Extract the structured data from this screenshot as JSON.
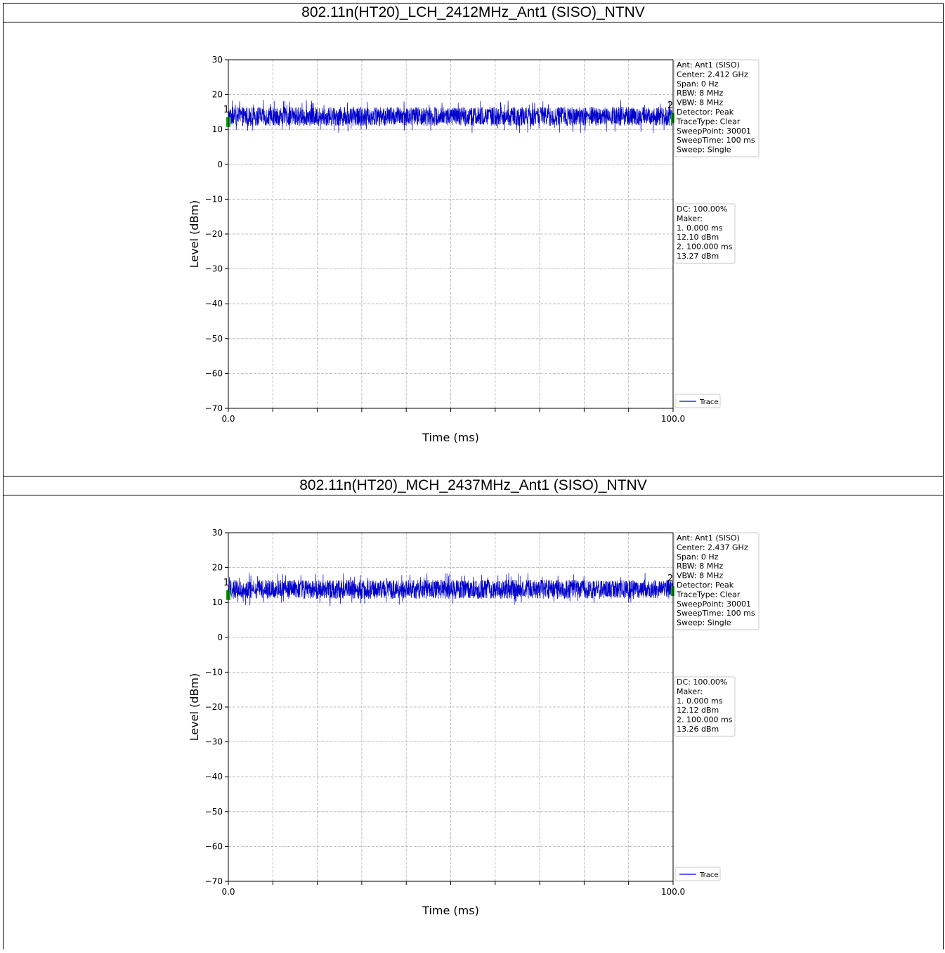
{
  "sections": [
    {
      "title": "802.11n(HT20)_LCH_2412MHz_Ant1 (SISO)_NTNV",
      "info_lines": [
        "Ant: Ant1 (SISO)",
        "Center: 2.412 GHz",
        "Span: 0 Hz",
        "RBW: 8 MHz",
        "VBW: 8 MHz",
        "Detector: Peak",
        "TraceType: Clear",
        "SweepPoint: 30001",
        "SweepTime: 100 ms",
        "Sweep: Single"
      ],
      "marker_lines": [
        "DC: 100.00%",
        "Maker:",
        "1. 0.000 ms",
        "    12.10 dBm",
        "2. 100.000 ms",
        "    13.27 dBm"
      ]
    },
    {
      "title": "802.11n(HT20)_MCH_2437MHz_Ant1 (SISO)_NTNV",
      "info_lines": [
        "Ant: Ant1 (SISO)",
        "Center: 2.437 GHz",
        "Span: 0 Hz",
        "RBW: 8 MHz",
        "VBW: 8 MHz",
        "Detector: Peak",
        "TraceType: Clear",
        "SweepPoint: 30001",
        "SweepTime: 100 ms",
        "Sweep: Single"
      ],
      "marker_lines": [
        "DC: 100.00%",
        "Maker:",
        "1. 0.000 ms",
        "    12.12 dBm",
        "2. 100.000 ms",
        "    13.26 dBm"
      ]
    }
  ],
  "chart_data": [
    {
      "type": "line",
      "xlabel": "Time (ms)",
      "ylabel": "Level (dBm)",
      "xlim": [
        0.0,
        100.0
      ],
      "ylim": [
        -70,
        30
      ],
      "x_tick_labels": [
        "0.0",
        "100.0"
      ],
      "y_ticks": [
        30,
        20,
        10,
        0,
        -10,
        -20,
        -30,
        -40,
        -50,
        -60,
        -70
      ],
      "y_tick_labels": [
        "30",
        "20",
        "10",
        "0",
        "−10",
        "−20",
        "−30",
        "−40",
        "−50",
        "−60",
        "−70"
      ],
      "grid": true,
      "legend_position": "bottom-right",
      "series": [
        {
          "name": "Trace",
          "color": "#0000cc",
          "approx_level_range_dbm": [
            10,
            17
          ],
          "approx_peak_dbm": 18.5
        }
      ],
      "markers": [
        {
          "label": "1",
          "x": 0.0,
          "y": 12.1,
          "color": "#00aa00"
        },
        {
          "label": "2",
          "x": 100.0,
          "y": 13.27,
          "color": "#00aa00"
        }
      ]
    },
    {
      "type": "line",
      "xlabel": "Time (ms)",
      "ylabel": "Level (dBm)",
      "xlim": [
        0.0,
        100.0
      ],
      "ylim": [
        -70,
        30
      ],
      "x_tick_labels": [
        "0.0",
        "100.0"
      ],
      "y_ticks": [
        30,
        20,
        10,
        0,
        -10,
        -20,
        -30,
        -40,
        -50,
        -60,
        -70
      ],
      "y_tick_labels": [
        "30",
        "20",
        "10",
        "0",
        "−10",
        "−20",
        "−30",
        "−40",
        "−50",
        "−60",
        "−70"
      ],
      "grid": true,
      "legend_position": "bottom-right",
      "series": [
        {
          "name": "Trace",
          "color": "#0000cc",
          "approx_level_range_dbm": [
            10,
            17
          ],
          "approx_peak_dbm": 18.5
        }
      ],
      "markers": [
        {
          "label": "1",
          "x": 0.0,
          "y": 12.12,
          "color": "#00aa00"
        },
        {
          "label": "2",
          "x": 100.0,
          "y": 13.26,
          "color": "#00aa00"
        }
      ]
    }
  ]
}
